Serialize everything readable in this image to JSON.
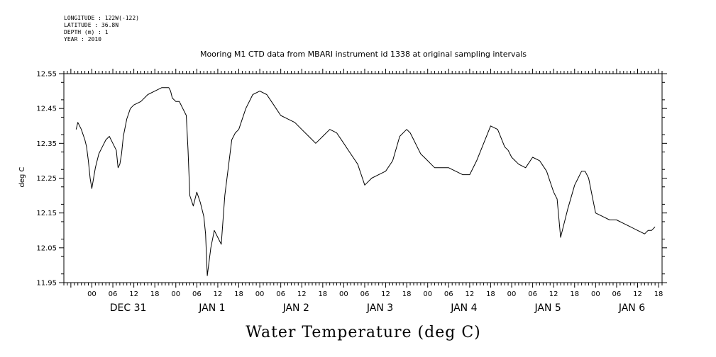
{
  "header": {
    "longitude": "LONGITUDE : 122W(-122)",
    "latitude": "LATITUDE : 36.8N",
    "depth": "DEPTH (m) : 1",
    "year": "YEAR : 2010"
  },
  "chart_data": {
    "type": "line",
    "title": "Mooring M1 CTD data from MBARI instrument id 1338 at original sampling intervals",
    "xlabel": "Water Temperature (deg C)",
    "ylabel": "deg C",
    "ylim": [
      11.95,
      12.55
    ],
    "yticks": [
      "12.55",
      "12.45",
      "12.35",
      "12.25",
      "12.15",
      "12.05",
      "11.95"
    ],
    "xlim_hours": [
      -8,
      163
    ],
    "hour_ticks": [
      "00",
      "06",
      "12",
      "18",
      "00",
      "06",
      "12",
      "18",
      "00",
      "06",
      "12",
      "18",
      "00",
      "06",
      "12",
      "18",
      "00",
      "06",
      "12",
      "18",
      "00",
      "06",
      "12",
      "18",
      "00",
      "06",
      "12",
      "18"
    ],
    "day_labels": [
      "DEC 31",
      "JAN  1",
      "JAN  2",
      "JAN  3",
      "JAN  4",
      "JAN  5",
      "JAN  6"
    ],
    "series": [
      {
        "x": [
          -4.5,
          -4,
          -3,
          -2,
          -1.5,
          -1,
          -0.5,
          0,
          0.5,
          1,
          2,
          3,
          4,
          5,
          6,
          7,
          7.5,
          8,
          8.5,
          9,
          10,
          11,
          12,
          14,
          16,
          18,
          20,
          22,
          22.5,
          23,
          24,
          25,
          26,
          27,
          27.5,
          28,
          29,
          30,
          31,
          32,
          32.5,
          33,
          34,
          35,
          36,
          37,
          38,
          39,
          40,
          41,
          42,
          44,
          46,
          48,
          50,
          52,
          54,
          56,
          58,
          60,
          62,
          64,
          66,
          68,
          70,
          72,
          74,
          76,
          78,
          80,
          82,
          84,
          86,
          88,
          90,
          91,
          92,
          93,
          94,
          95,
          96,
          97,
          98,
          100,
          102,
          104,
          106,
          108,
          110,
          112,
          114,
          116,
          118,
          119,
          120,
          121,
          122,
          124,
          126,
          128,
          130,
          131,
          132,
          133,
          134,
          136,
          138,
          140,
          141,
          142,
          143,
          144,
          146,
          148,
          150,
          152,
          154,
          156,
          158,
          159,
          160,
          161
        ],
        "y": [
          12.39,
          12.41,
          12.39,
          12.36,
          12.34,
          12.3,
          12.25,
          12.22,
          12.25,
          12.28,
          12.32,
          12.34,
          12.36,
          12.37,
          12.35,
          12.33,
          12.28,
          12.29,
          12.32,
          12.37,
          12.42,
          12.45,
          12.46,
          12.47,
          12.49,
          12.5,
          12.51,
          12.51,
          12.5,
          12.48,
          12.47,
          12.47,
          12.45,
          12.43,
          12.33,
          12.2,
          12.17,
          12.21,
          12.18,
          12.14,
          12.09,
          11.97,
          12.05,
          12.1,
          12.08,
          12.06,
          12.2,
          12.28,
          12.36,
          12.38,
          12.39,
          12.45,
          12.49,
          12.5,
          12.49,
          12.46,
          12.43,
          12.42,
          12.41,
          12.39,
          12.37,
          12.35,
          12.37,
          12.39,
          12.38,
          12.35,
          12.32,
          12.29,
          12.23,
          12.25,
          12.26,
          12.27,
          12.3,
          12.37,
          12.39,
          12.38,
          12.36,
          12.34,
          12.32,
          12.31,
          12.3,
          12.29,
          12.28,
          12.28,
          12.28,
          12.27,
          12.26,
          12.26,
          12.3,
          12.35,
          12.4,
          12.39,
          12.34,
          12.33,
          12.31,
          12.3,
          12.29,
          12.28,
          12.31,
          12.3,
          12.27,
          12.24,
          12.21,
          12.19,
          12.08,
          12.16,
          12.23,
          12.27,
          12.27,
          12.25,
          12.2,
          12.15,
          12.14,
          12.13,
          12.13,
          12.12,
          12.11,
          12.1,
          12.09,
          12.1,
          12.1,
          12.11
        ]
      }
    ]
  }
}
